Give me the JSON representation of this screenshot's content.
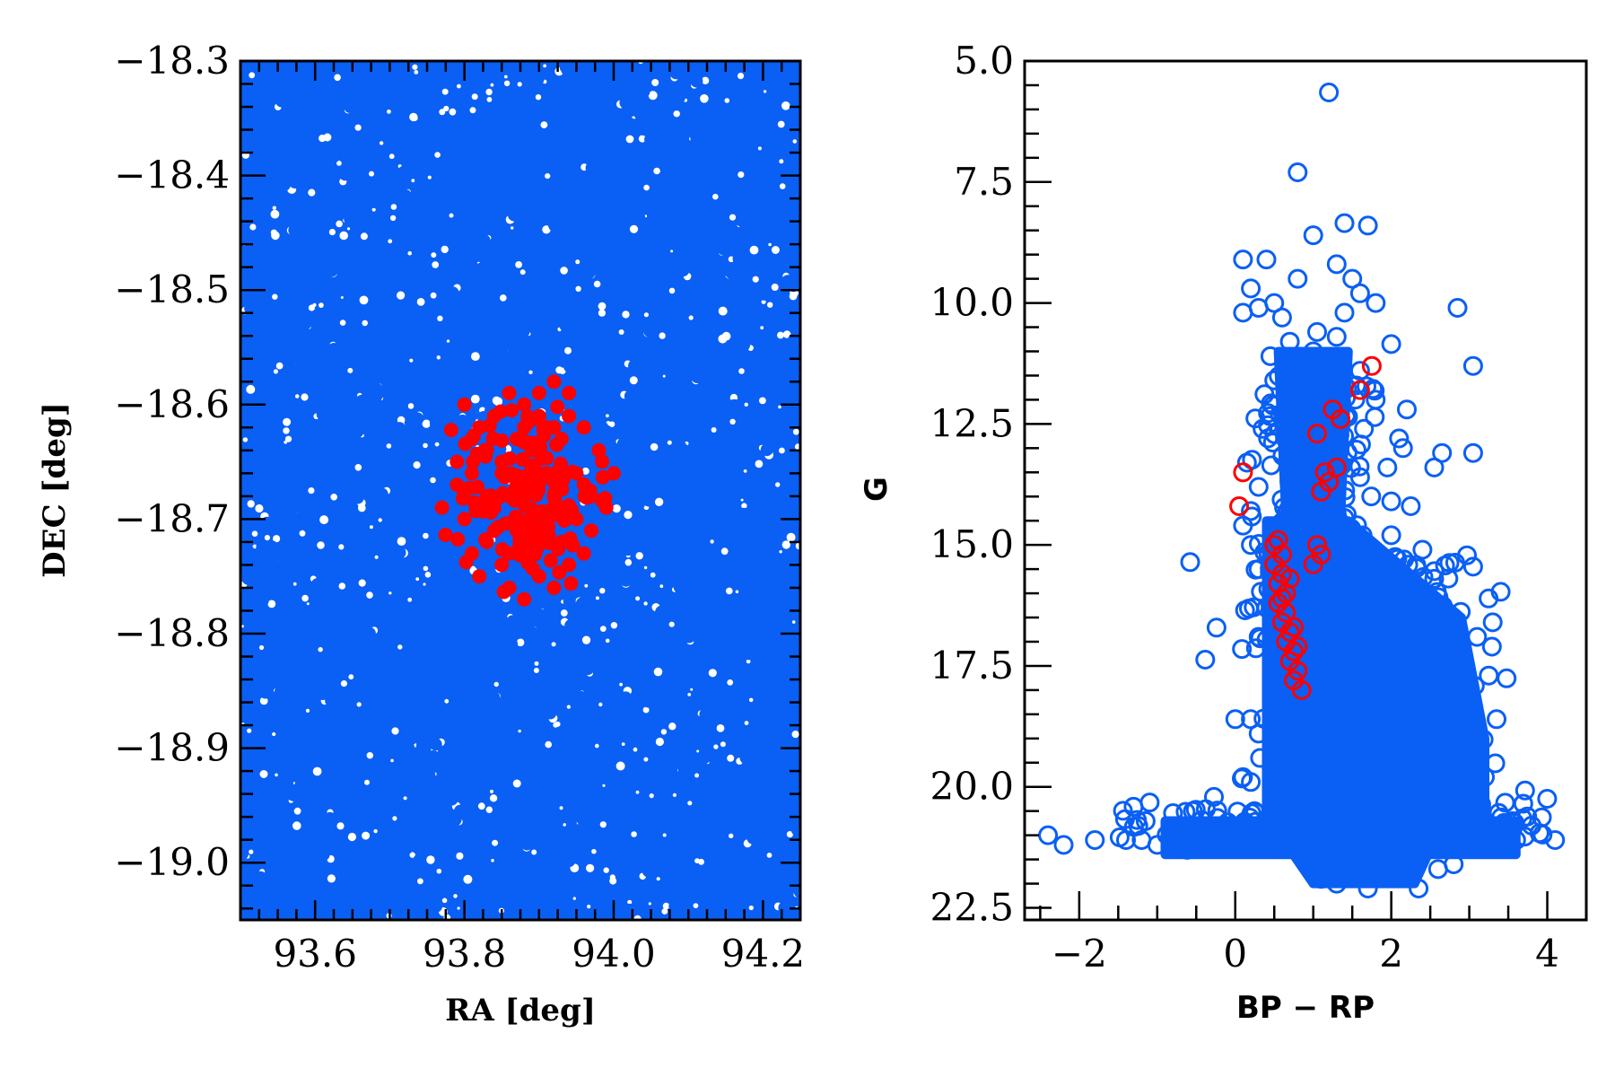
{
  "chart_data": [
    {
      "type": "scatter",
      "xlabel": "RA [deg]",
      "ylabel": "DEC [deg]",
      "xlim": [
        93.5,
        94.25
      ],
      "ylim": [
        -19.05,
        -18.3
      ],
      "y_inverted": false,
      "xticks": [
        93.6,
        93.8,
        94.0,
        94.2
      ],
      "xtick_labels": [
        "93.6",
        "93.8",
        "94.0",
        "94.2"
      ],
      "yticks": [
        -18.3,
        -18.4,
        -18.5,
        -18.6,
        -18.7,
        -18.8,
        -18.9,
        -19.0
      ],
      "ytick_labels": [
        "−18.3",
        "−18.4",
        "−18.5",
        "−18.6",
        "−18.7",
        "−18.8",
        "−18.9",
        "−19.0"
      ],
      "background": {
        "marker": "filled-circle",
        "color": "#0a5ff5",
        "description": "dense field stars filling the whole panel",
        "x_range": [
          93.5,
          94.25
        ],
        "y_range": [
          -19.05,
          -18.3
        ]
      },
      "series": [
        {
          "marker": "filled-circle",
          "color": "#ff0000",
          "points": [
            [
              93.8,
              -18.6
            ],
            [
              93.82,
              -18.62
            ],
            [
              93.84,
              -18.61
            ],
            [
              93.86,
              -18.59
            ],
            [
              93.88,
              -18.6
            ],
            [
              93.9,
              -18.61
            ],
            [
              93.92,
              -18.58
            ],
            [
              93.94,
              -18.59
            ],
            [
              93.91,
              -18.62
            ],
            [
              93.87,
              -18.63
            ],
            [
              93.83,
              -18.64
            ],
            [
              93.79,
              -18.65
            ],
            [
              93.81,
              -18.66
            ],
            [
              93.85,
              -18.65
            ],
            [
              93.89,
              -18.64
            ],
            [
              93.93,
              -18.63
            ],
            [
              93.96,
              -18.62
            ],
            [
              93.98,
              -18.64
            ],
            [
              93.95,
              -18.66
            ],
            [
              93.91,
              -18.66
            ],
            [
              93.87,
              -18.67
            ],
            [
              93.83,
              -18.68
            ],
            [
              93.79,
              -18.67
            ],
            [
              93.77,
              -18.69
            ],
            [
              93.8,
              -18.7
            ],
            [
              93.84,
              -18.69
            ],
            [
              93.88,
              -18.68
            ],
            [
              93.92,
              -18.68
            ],
            [
              93.96,
              -18.67
            ],
            [
              94.0,
              -18.66
            ],
            [
              93.99,
              -18.69
            ],
            [
              93.95,
              -18.7
            ],
            [
              93.91,
              -18.7
            ],
            [
              93.87,
              -18.71
            ],
            [
              93.83,
              -18.72
            ],
            [
              93.81,
              -18.73
            ],
            [
              93.85,
              -18.74
            ],
            [
              93.89,
              -18.73
            ],
            [
              93.93,
              -18.72
            ],
            [
              93.97,
              -18.71
            ],
            [
              93.94,
              -18.74
            ],
            [
              93.9,
              -18.75
            ],
            [
              93.86,
              -18.76
            ],
            [
              93.88,
              -18.77
            ],
            [
              93.92,
              -18.76
            ],
            [
              93.84,
              -18.71
            ],
            [
              93.86,
              -18.68
            ],
            [
              93.9,
              -18.66
            ],
            [
              93.94,
              -18.61
            ],
            [
              93.88,
              -18.62
            ],
            [
              93.82,
              -18.75
            ],
            [
              93.96,
              -18.73
            ],
            [
              93.85,
              -18.66
            ],
            [
              93.93,
              -18.69
            ],
            [
              93.89,
              -18.7
            ],
            [
              93.86,
              -18.73
            ],
            [
              93.91,
              -18.72
            ],
            [
              93.97,
              -18.68
            ],
            [
              93.81,
              -18.63
            ],
            [
              93.9,
              -18.59
            ]
          ]
        }
      ]
    },
    {
      "type": "scatter",
      "xlabel": "BP − RP",
      "ylabel": "G",
      "xlim": [
        -2.7,
        4.5
      ],
      "ylim": [
        5.0,
        22.75
      ],
      "y_inverted": true,
      "xticks": [
        -2,
        0,
        2,
        4
      ],
      "xtick_labels": [
        "−2",
        "0",
        "2",
        "4"
      ],
      "yticks": [
        5.0,
        7.5,
        10.0,
        12.5,
        15.0,
        17.5,
        20.0,
        22.5
      ],
      "ytick_labels": [
        "5.0",
        "7.5",
        "10.0",
        "12.5",
        "15.0",
        "17.5",
        "20.0",
        "22.5"
      ],
      "background": {
        "marker": "open-circle",
        "color": "#0a5ff5",
        "description": "field-star colour-magnitude distribution"
      },
      "series": [
        {
          "marker": "open-circle",
          "color": "#0a5ff5",
          "points": [
            [
              1.2,
              5.65
            ],
            [
              0.8,
              7.3
            ],
            [
              1.0,
              8.6
            ],
            [
              1.4,
              8.35
            ],
            [
              1.7,
              8.4
            ],
            [
              0.1,
              9.1
            ],
            [
              0.4,
              9.1
            ],
            [
              1.3,
              9.2
            ],
            [
              0.8,
              9.5
            ],
            [
              1.5,
              9.5
            ],
            [
              0.2,
              9.7
            ],
            [
              1.6,
              9.8
            ],
            [
              0.5,
              10.0
            ],
            [
              1.8,
              10.0
            ],
            [
              0.3,
              10.1
            ],
            [
              2.85,
              10.1
            ],
            [
              0.1,
              10.2
            ],
            [
              1.4,
              10.2
            ],
            [
              0.6,
              10.3
            ],
            [
              1.05,
              10.6
            ],
            [
              1.3,
              10.7
            ],
            [
              0.7,
              10.8
            ],
            [
              2.0,
              10.85
            ],
            [
              1.0,
              11.0
            ],
            [
              0.45,
              11.1
            ],
            [
              0.9,
              11.2
            ],
            [
              1.6,
              11.4
            ],
            [
              3.05,
              11.3
            ],
            [
              0.5,
              11.6
            ],
            [
              1.4,
              11.7
            ],
            [
              1.8,
              12.0
            ],
            [
              2.2,
              12.2
            ],
            [
              0.35,
              12.6
            ],
            [
              1.65,
              12.6
            ],
            [
              2.1,
              12.8
            ],
            [
              1.2,
              12.8
            ],
            [
              2.15,
              13.0
            ],
            [
              2.65,
              13.1
            ],
            [
              3.05,
              13.1
            ],
            [
              0.15,
              13.3
            ],
            [
              1.95,
              13.4
            ],
            [
              2.55,
              13.4
            ],
            [
              0.3,
              13.8
            ],
            [
              1.6,
              13.6
            ],
            [
              2.0,
              14.1
            ],
            [
              0.2,
              14.3
            ],
            [
              2.25,
              14.2
            ],
            [
              0.1,
              14.6
            ],
            [
              2.0,
              14.8
            ],
            [
              0.2,
              15.0
            ],
            [
              2.4,
              15.1
            ],
            [
              3.05,
              15.45
            ],
            [
              0.3,
              15.5
            ],
            [
              2.55,
              15.7
            ],
            [
              0.4,
              16.3
            ],
            [
              3.3,
              16.6
            ],
            [
              0.3,
              16.9
            ],
            [
              3.1,
              16.9
            ],
            [
              0.5,
              17.2
            ],
            [
              3.25,
              17.7
            ],
            [
              0.0,
              18.6
            ],
            [
              0.2,
              18.6
            ],
            [
              3.35,
              18.6
            ],
            [
              0.3,
              18.9
            ],
            [
              0.1,
              19.8
            ],
            [
              0.2,
              19.9
            ],
            [
              3.2,
              19.8
            ],
            [
              -1.2,
              21.1
            ],
            [
              -2.4,
              21.0
            ],
            [
              -2.2,
              21.2
            ],
            [
              -1.8,
              21.1
            ],
            [
              -1.4,
              21.1
            ],
            [
              -1.0,
              21.2
            ],
            [
              -0.7,
              21.0
            ],
            [
              -0.4,
              21.0
            ],
            [
              -0.2,
              21.2
            ],
            [
              3.5,
              20.9
            ],
            [
              3.8,
              20.8
            ],
            [
              4.1,
              21.1
            ],
            [
              3.6,
              21.1
            ],
            [
              3.0,
              20.6
            ],
            [
              1.7,
              22.1
            ],
            [
              2.35,
              22.1
            ],
            [
              2.8,
              21.6
            ],
            [
              2.6,
              21.7
            ],
            [
              1.1,
              21.9
            ],
            [
              1.3,
              22.0
            ]
          ]
        },
        {
          "marker": "open-circle",
          "color": "#ff0000",
          "points": [
            [
              1.75,
              11.3
            ],
            [
              1.6,
              11.8
            ],
            [
              1.25,
              12.2
            ],
            [
              1.35,
              12.4
            ],
            [
              1.05,
              12.7
            ],
            [
              0.1,
              13.5
            ],
            [
              1.3,
              13.4
            ],
            [
              1.15,
              13.5
            ],
            [
              1.1,
              13.9
            ],
            [
              1.2,
              13.7
            ],
            [
              0.05,
              14.2
            ],
            [
              1.05,
              15.0
            ],
            [
              1.1,
              15.2
            ],
            [
              1.0,
              15.4
            ],
            [
              0.5,
              15.0
            ],
            [
              0.6,
              15.2
            ],
            [
              0.5,
              15.4
            ],
            [
              0.6,
              15.6
            ],
            [
              0.55,
              15.8
            ],
            [
              0.65,
              16.0
            ],
            [
              0.55,
              16.2
            ],
            [
              0.65,
              16.4
            ],
            [
              0.6,
              16.6
            ],
            [
              0.7,
              16.8
            ],
            [
              0.65,
              17.0
            ],
            [
              0.75,
              17.2
            ],
            [
              0.7,
              17.4
            ],
            [
              0.8,
              17.6
            ],
            [
              0.75,
              17.8
            ],
            [
              0.85,
              18.0
            ],
            [
              0.55,
              14.9
            ],
            [
              0.7,
              15.7
            ],
            [
              0.6,
              16.1
            ],
            [
              0.75,
              16.7
            ],
            [
              0.8,
              17.1
            ]
          ]
        }
      ]
    }
  ]
}
